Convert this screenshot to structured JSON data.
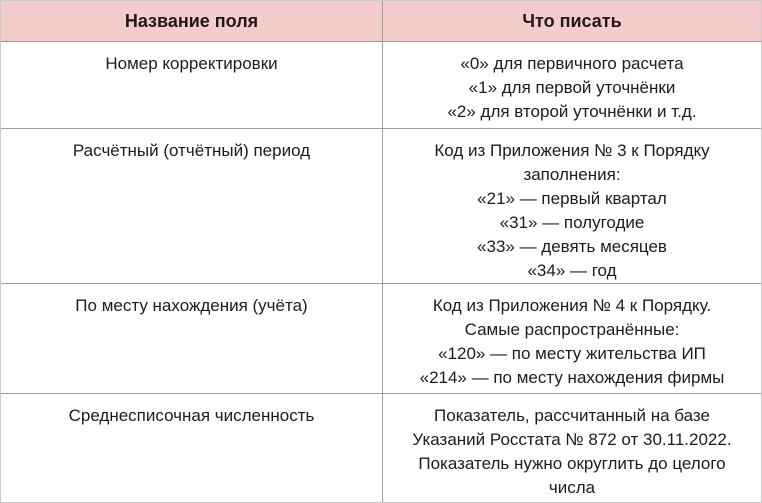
{
  "table": {
    "headers": {
      "field": "Название поля",
      "value": "Что писать"
    },
    "rows": [
      {
        "field": "Номер корректировки",
        "value": "«0» для первичного расчета\n«1» для первой уточнёнки\n«2» для второй уточнёнки и т.д."
      },
      {
        "field": "Расчётный (отчётный) период",
        "value": "Код из Приложения № 3 к Порядку\nзаполнения:\n«21» — первый квартал\n«31» — полугодие\n«33» — девять месяцев\n«34» — год"
      },
      {
        "field": "По месту нахождения (учёта)",
        "value": "Код из Приложения № 4 к Порядку.\nСамые распространённые:\n«120» — по месту жительства ИП\n«214» — по месту нахождения фирмы"
      },
      {
        "field": "Среднесписочная численность",
        "value": "Показатель, рассчитанный на базе\nУказаний Росстата № 872 от 30.11.2022.\nПоказатель нужно округлить до целого\nчисла"
      }
    ]
  },
  "colors": {
    "header_bg": "#f4cccb",
    "header_text": "#231814",
    "body_text": "#1c1c1c",
    "border": "#9e9e9e",
    "outer_border": "#c9c9c9",
    "page_bg": "#ffffff"
  }
}
